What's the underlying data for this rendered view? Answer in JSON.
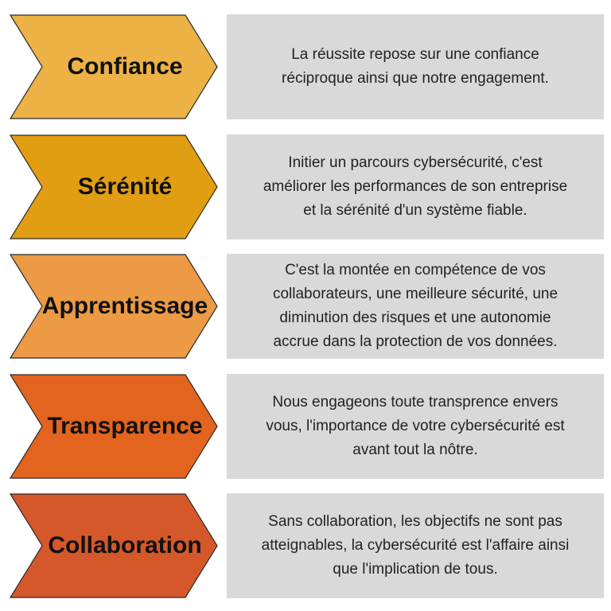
{
  "colors": {
    "confiance": "#ecb245",
    "serenite": "#e19e12",
    "apprentissage": "#ec9a45",
    "transparence": "#e2641e",
    "collaboration": "#d5582a",
    "desc_background": "#d9d9d9",
    "outline": "#2b2b2b"
  },
  "items": [
    {
      "label": "Confiance",
      "lines": [
        "La réussite repose sur une confiance",
        "réciproque ainsi que notre engagement."
      ]
    },
    {
      "label": "Sérénité",
      "lines": [
        "Initier un parcours cybersécurité, c'est",
        "améliorer les performances de son entreprise",
        "et la sérénité d'un système fiable."
      ]
    },
    {
      "label": "Apprentissage",
      "lines": [
        "C'est la montée en compétence de vos",
        "collaborateurs, une meilleure sécurité, une",
        "diminution des risques et une autonomie",
        "accrue dans la protection de vos données."
      ]
    },
    {
      "label": "Transparence",
      "lines": [
        "Nous engageons toute transprence envers",
        "vous, l'importance de votre cybersécurité est",
        "avant tout la nôtre."
      ]
    },
    {
      "label": "Collaboration",
      "lines": [
        "Sans collaboration, les objectifs ne sont pas",
        "atteignables, la cybersécurité est l'affaire ainsi",
        "que l'implication de tous."
      ]
    }
  ]
}
